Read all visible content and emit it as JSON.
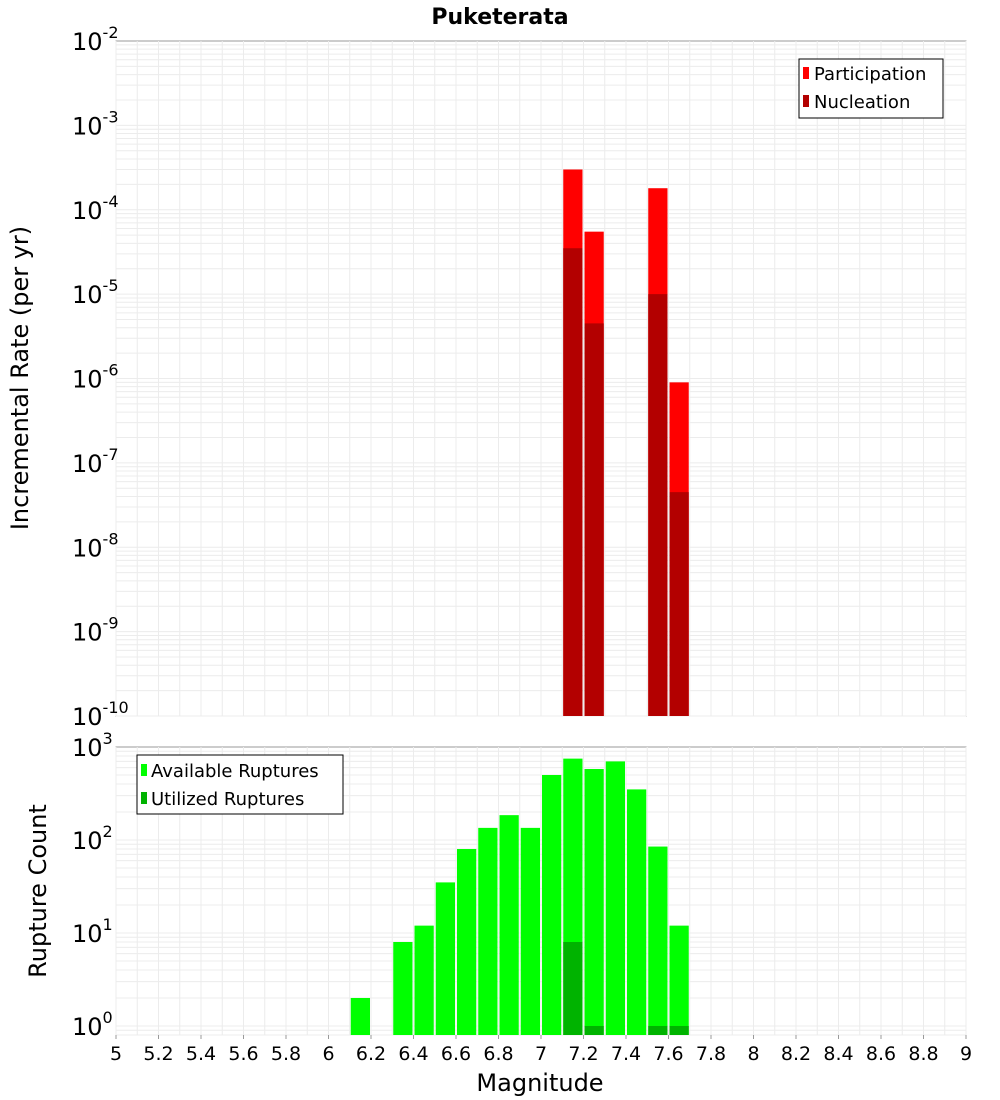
{
  "chart_data": [
    {
      "type": "bar",
      "title": "Puketerata",
      "ylabel": "Incremental Rate (per yr)",
      "y_scale": "log",
      "ylim": [
        1e-10,
        0.01
      ],
      "xlim": [
        5,
        9
      ],
      "grid": true,
      "legend_position": "top-right",
      "bin_width": 0.1,
      "y_ticks": [
        {
          "base": "10",
          "exp": "-10"
        },
        {
          "base": "10",
          "exp": "-9"
        },
        {
          "base": "10",
          "exp": "-8"
        },
        {
          "base": "10",
          "exp": "-7"
        },
        {
          "base": "10",
          "exp": "-6"
        },
        {
          "base": "10",
          "exp": "-5"
        },
        {
          "base": "10",
          "exp": "-4"
        },
        {
          "base": "10",
          "exp": "-3"
        },
        {
          "base": "10",
          "exp": "-2"
        }
      ],
      "series": [
        {
          "name": "Participation",
          "color": "#ff0000",
          "x": [
            7.15,
            7.25,
            7.55,
            7.65
          ],
          "values": [
            0.0003,
            5.5e-05,
            0.00018,
            9e-07
          ]
        },
        {
          "name": "Nucleation",
          "color": "#b30000",
          "x": [
            7.15,
            7.25,
            7.55,
            7.65
          ],
          "values": [
            3.5e-05,
            4.5e-06,
            1e-05,
            4.5e-08
          ]
        }
      ]
    },
    {
      "type": "bar",
      "ylabel": "Rupture Count",
      "xlabel": "Magnitude",
      "y_scale": "log",
      "ylim": [
        0.8,
        1000
      ],
      "xlim": [
        5,
        9
      ],
      "grid": true,
      "legend_position": "top-left",
      "bin_width": 0.1,
      "y_ticks": [
        {
          "value": 1,
          "base": "10",
          "exp": "0"
        },
        {
          "value": 10,
          "base": "10",
          "exp": "1"
        },
        {
          "value": 100,
          "base": "10",
          "exp": "2"
        },
        {
          "value": 1000,
          "base": "10",
          "exp": "3"
        }
      ],
      "x_ticks": [
        "5",
        "5.2",
        "5.4",
        "5.6",
        "5.8",
        "6",
        "6.2",
        "6.4",
        "6.6",
        "6.8",
        "7",
        "7.2",
        "7.4",
        "7.6",
        "7.8",
        "8",
        "8.2",
        "8.4",
        "8.6",
        "8.8",
        "9"
      ],
      "series": [
        {
          "name": "Available Ruptures",
          "color": "#00ff00",
          "x": [
            6.15,
            6.35,
            6.45,
            6.55,
            6.65,
            6.75,
            6.85,
            6.95,
            7.05,
            7.15,
            7.25,
            7.35,
            7.45,
            7.55,
            7.65
          ],
          "values": [
            2,
            8,
            12,
            35,
            80,
            135,
            185,
            135,
            500,
            750,
            580,
            700,
            350,
            85,
            12
          ]
        },
        {
          "name": "Utilized Ruptures",
          "color": "#00b300",
          "x": [
            7.15,
            7.25,
            7.55,
            7.65
          ],
          "values": [
            8,
            1,
            1,
            1
          ]
        }
      ]
    }
  ]
}
